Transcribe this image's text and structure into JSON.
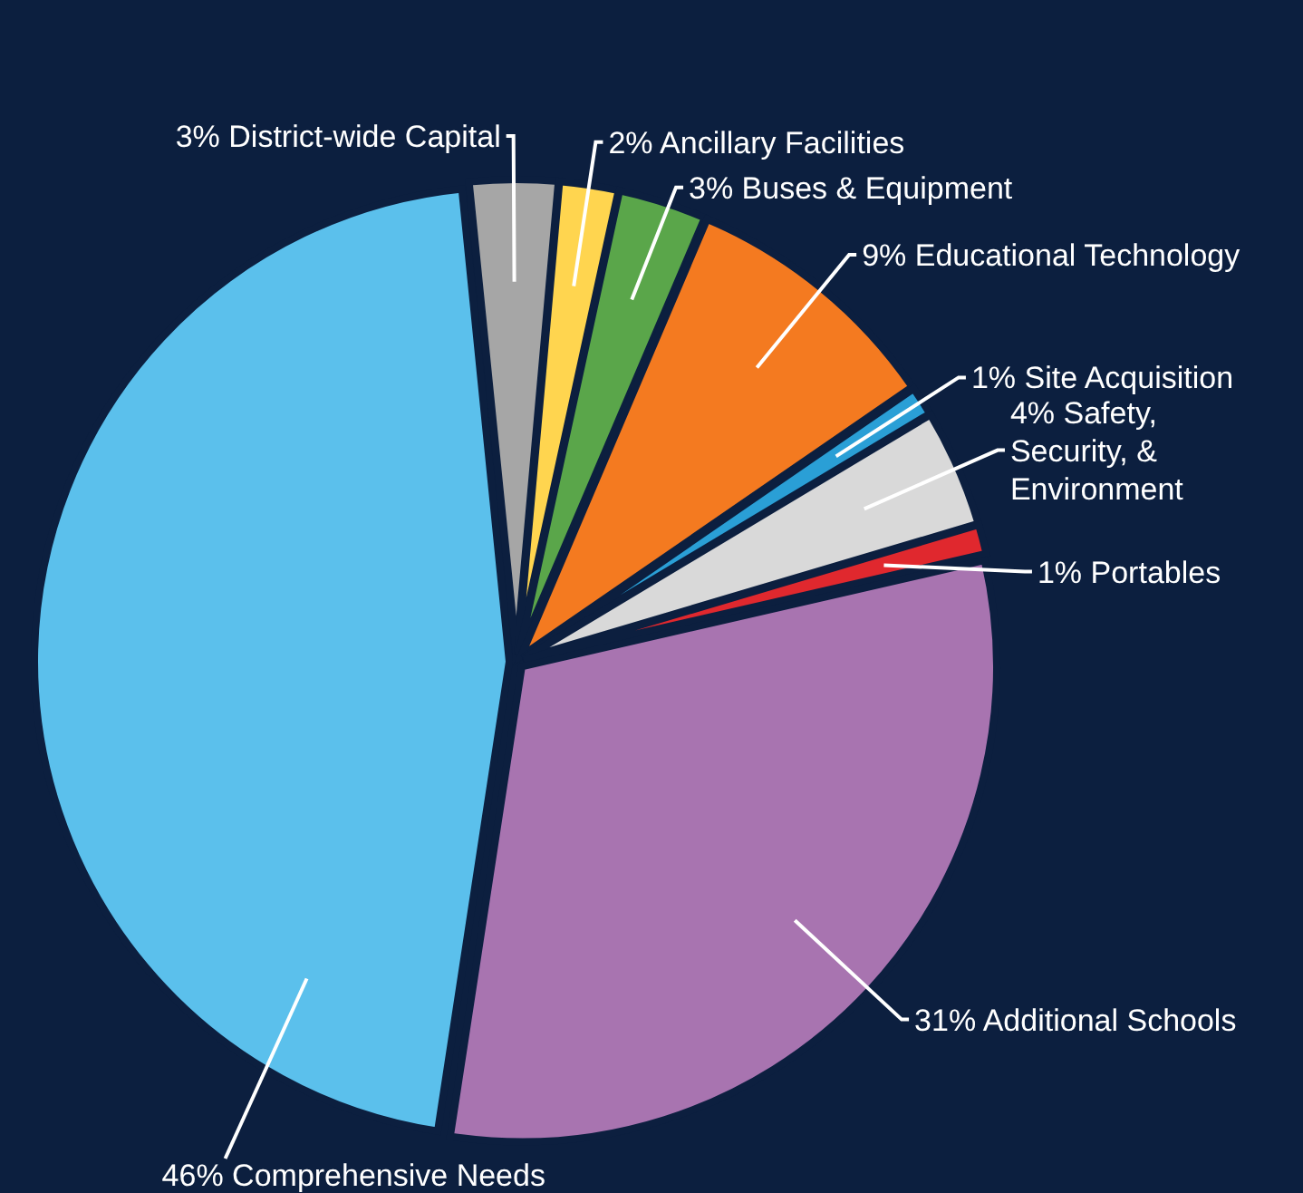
{
  "chart_data": {
    "type": "pie",
    "categories": [
      "District-wide Capital",
      "Ancillary Facilities",
      "Buses & Equipment",
      "Educational Technology",
      "Site Acquisition",
      "Safety, Security, & Environment",
      "Portables",
      "Additional Schools",
      "Comprehensive Needs"
    ],
    "values": [
      3,
      2,
      3,
      9,
      1,
      4,
      1,
      31,
      46
    ],
    "value_labels": [
      "3%",
      "2%",
      "3%",
      "9%",
      "1%",
      "4%",
      "1%",
      "31%",
      "46%"
    ],
    "colors": [
      "#a6a6a6",
      "#ffd54f",
      "#5aa64a",
      "#f47a20",
      "#2a9fd6",
      "#d9d9d9",
      "#e0282e",
      "#a874b0",
      "#5bc0ec"
    ]
  }
}
